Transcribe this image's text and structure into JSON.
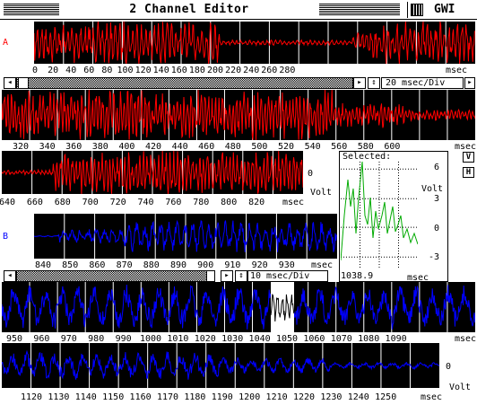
{
  "window": {
    "title": "2 Channel Editor",
    "logo_text": "GWI"
  },
  "channel_a": {
    "label": "A",
    "color": "#ff0000",
    "row1_ticks": [
      "0",
      "20",
      "40",
      "60",
      "80",
      "100",
      "120",
      "140",
      "160",
      "180",
      "200",
      "220",
      "240",
      "260",
      "280"
    ],
    "row1_unit": "msec",
    "row2_ticks": [
      "320",
      "340",
      "360",
      "380",
      "400",
      "420",
      "440",
      "460",
      "480",
      "500",
      "520",
      "540",
      "560",
      "580",
      "600"
    ],
    "row2_unit": "msec",
    "row3_ticks": [
      "640",
      "660",
      "680",
      "700",
      "720",
      "740",
      "760",
      "780",
      "800",
      "820"
    ],
    "row3_unit": "msec",
    "zero_label": "0",
    "volt_label": "Volt",
    "scale": "20 msec/Div"
  },
  "channel_b": {
    "label": "B",
    "color": "#0000ff",
    "row1_ticks": [
      "840",
      "850",
      "860",
      "870",
      "880",
      "890",
      "900",
      "910",
      "920",
      "930"
    ],
    "row1_unit": "msec",
    "row2_ticks": [
      "950",
      "960",
      "970",
      "980",
      "990",
      "1000",
      "1010",
      "1020",
      "1030",
      "1040",
      "1050",
      "1060",
      "1070",
      "1080",
      "1090"
    ],
    "row2_unit": "msec",
    "row3_ticks": [
      "1120",
      "1130",
      "1140",
      "1150",
      "1160",
      "1170",
      "1180",
      "1190",
      "1200",
      "1210",
      "1220",
      "1230",
      "1240",
      "1250"
    ],
    "row3_unit": "msec",
    "zero_label": "0",
    "volt_label": "Volt",
    "scale": "10 msec/Div"
  },
  "selected": {
    "title": "Selected:",
    "y_ticks": [
      "6",
      "3",
      "0",
      "-3"
    ],
    "volt_label": "Volt",
    "x_start": "1038.9",
    "x_unit": "msec",
    "color": "#00aa00"
  },
  "buttons": {
    "v": "V",
    "h": "H"
  }
}
